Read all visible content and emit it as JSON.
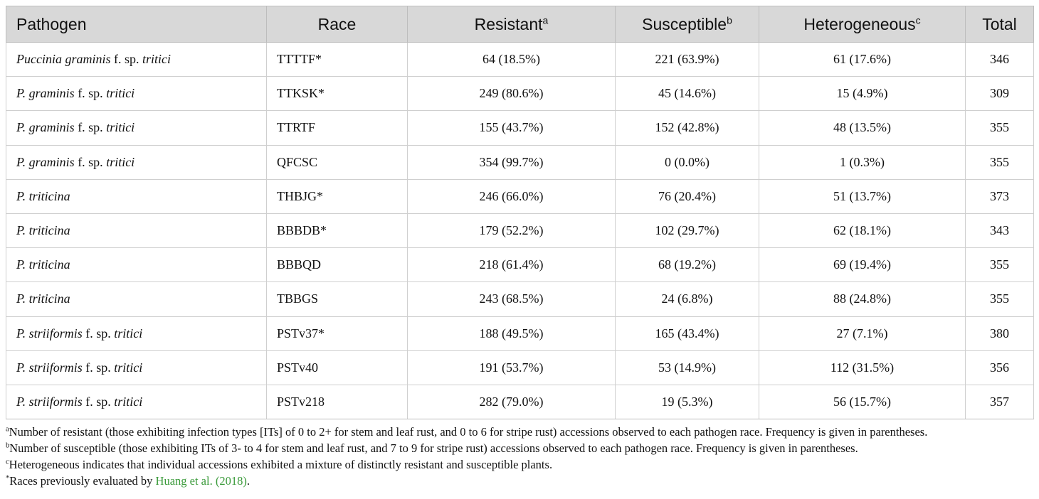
{
  "table": {
    "headers": [
      {
        "text": "Pathogen",
        "sup": ""
      },
      {
        "text": "Race",
        "sup": ""
      },
      {
        "text": "Resistant",
        "sup": "a"
      },
      {
        "text": "Susceptible",
        "sup": "b"
      },
      {
        "text": "Heterogeneous",
        "sup": "c"
      },
      {
        "text": "Total",
        "sup": ""
      }
    ],
    "rows": [
      {
        "pathogen": [
          {
            "t": "Puccinia graminis",
            "i": true
          },
          {
            "t": " f. sp. ",
            "i": false
          },
          {
            "t": "tritici",
            "i": true
          }
        ],
        "race": "TTTTF*",
        "resistant": "64 (18.5%)",
        "susceptible": "221 (63.9%)",
        "heterogeneous": "61 (17.6%)",
        "total": "346"
      },
      {
        "pathogen": [
          {
            "t": "P. graminis",
            "i": true
          },
          {
            "t": " f. sp. ",
            "i": false
          },
          {
            "t": "tritici",
            "i": true
          }
        ],
        "race": "TTKSK*",
        "resistant": "249 (80.6%)",
        "susceptible": "45 (14.6%)",
        "heterogeneous": "15 (4.9%)",
        "total": "309"
      },
      {
        "pathogen": [
          {
            "t": "P. graminis",
            "i": true
          },
          {
            "t": " f. sp. ",
            "i": false
          },
          {
            "t": "tritici",
            "i": true
          }
        ],
        "race": "TTRTF",
        "resistant": "155 (43.7%)",
        "susceptible": "152 (42.8%)",
        "heterogeneous": "48 (13.5%)",
        "total": "355"
      },
      {
        "pathogen": [
          {
            "t": "P. graminis",
            "i": true
          },
          {
            "t": " f. sp. ",
            "i": false
          },
          {
            "t": "tritici",
            "i": true
          }
        ],
        "race": "QFCSC",
        "resistant": "354 (99.7%)",
        "susceptible": "0 (0.0%)",
        "heterogeneous": "1 (0.3%)",
        "total": "355"
      },
      {
        "pathogen": [
          {
            "t": "P. triticina",
            "i": true
          }
        ],
        "race": "THBJG*",
        "resistant": "246 (66.0%)",
        "susceptible": "76 (20.4%)",
        "heterogeneous": "51 (13.7%)",
        "total": "373"
      },
      {
        "pathogen": [
          {
            "t": "P. triticina",
            "i": true
          }
        ],
        "race": "BBBDB*",
        "resistant": "179 (52.2%)",
        "susceptible": "102 (29.7%)",
        "heterogeneous": "62 (18.1%)",
        "total": "343"
      },
      {
        "pathogen": [
          {
            "t": "P. triticina",
            "i": true
          }
        ],
        "race": "BBBQD",
        "resistant": "218 (61.4%)",
        "susceptible": "68 (19.2%)",
        "heterogeneous": "69 (19.4%)",
        "total": "355"
      },
      {
        "pathogen": [
          {
            "t": "P. triticina",
            "i": true
          }
        ],
        "race": "TBBGS",
        "resistant": "243 (68.5%)",
        "susceptible": "24 (6.8%)",
        "heterogeneous": "88 (24.8%)",
        "total": "355"
      },
      {
        "pathogen": [
          {
            "t": "P. striiformis",
            "i": true
          },
          {
            "t": " f. sp. ",
            "i": false
          },
          {
            "t": "tritici",
            "i": true
          }
        ],
        "race": "PSTv37*",
        "resistant": "188 (49.5%)",
        "susceptible": "165 (43.4%)",
        "heterogeneous": "27 (7.1%)",
        "total": "380"
      },
      {
        "pathogen": [
          {
            "t": "P. striiformis",
            "i": true
          },
          {
            "t": " f. sp. ",
            "i": false
          },
          {
            "t": "tritici",
            "i": true
          }
        ],
        "race": "PSTv40",
        "resistant": "191 (53.7%)",
        "susceptible": "53 (14.9%)",
        "heterogeneous": "112 (31.5%)",
        "total": "356"
      },
      {
        "pathogen": [
          {
            "t": "P. striiformis",
            "i": true
          },
          {
            "t": " f. sp. ",
            "i": false
          },
          {
            "t": "tritici",
            "i": true
          }
        ],
        "race": "PSTv218",
        "resistant": "282 (79.0%)",
        "susceptible": "19 (5.3%)",
        "heterogeneous": "56 (15.7%)",
        "total": "357"
      }
    ]
  },
  "footnotes": [
    {
      "sup": "a",
      "text": "Number of resistant (those exhibiting infection types [ITs] of 0 to 2+ for stem and leaf rust, and 0 to 6 for stripe rust) accessions observed to each pathogen race. Frequency is given in parentheses.",
      "link": "",
      "after": ""
    },
    {
      "sup": "b",
      "text": "Number of susceptible (those exhibiting ITs of 3- to 4 for stem and leaf rust, and 7 to 9 for stripe rust) accessions observed to each pathogen race. Frequency is given in parentheses.",
      "link": "",
      "after": ""
    },
    {
      "sup": "c",
      "text": "Heterogeneous indicates that individual accessions exhibited a mixture of distinctly resistant and susceptible plants.",
      "link": "",
      "after": ""
    },
    {
      "sup": "*",
      "text": "Races previously evaluated by ",
      "link": "Huang et al. (2018)",
      "after": "."
    }
  ],
  "colors": {
    "header_bg": "#d8d8d8",
    "link": "#3a9a3a"
  }
}
